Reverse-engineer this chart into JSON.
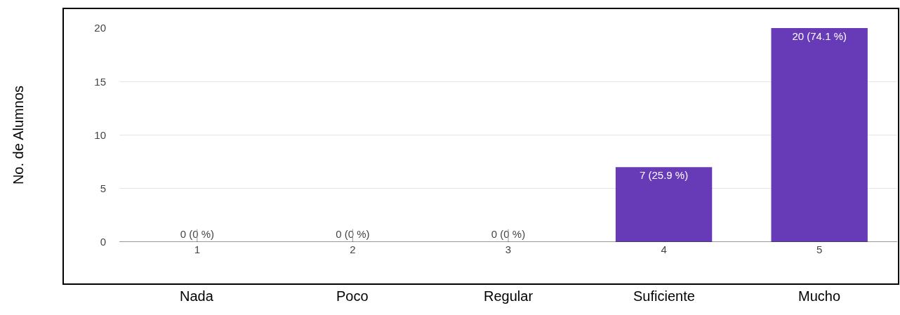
{
  "chart_data": {
    "type": "bar",
    "ylabel": "No. de Alumnos",
    "categories": [
      "1",
      "2",
      "3",
      "4",
      "5"
    ],
    "values": [
      0,
      0,
      0,
      7,
      20
    ],
    "value_labels": [
      "0 (0 %)",
      "0 (0 %)",
      "0 (0 %)",
      "7 (25.9 %)",
      "20 (74.1 %)"
    ],
    "color": "#673ab7",
    "ylim": [
      0,
      20
    ],
    "yticks": [
      0,
      5,
      10,
      15,
      20
    ],
    "grid": "y",
    "legend": false,
    "annotations": [
      "Nada",
      "Poco",
      "Regular",
      "Suficiente",
      "Mucho"
    ]
  }
}
